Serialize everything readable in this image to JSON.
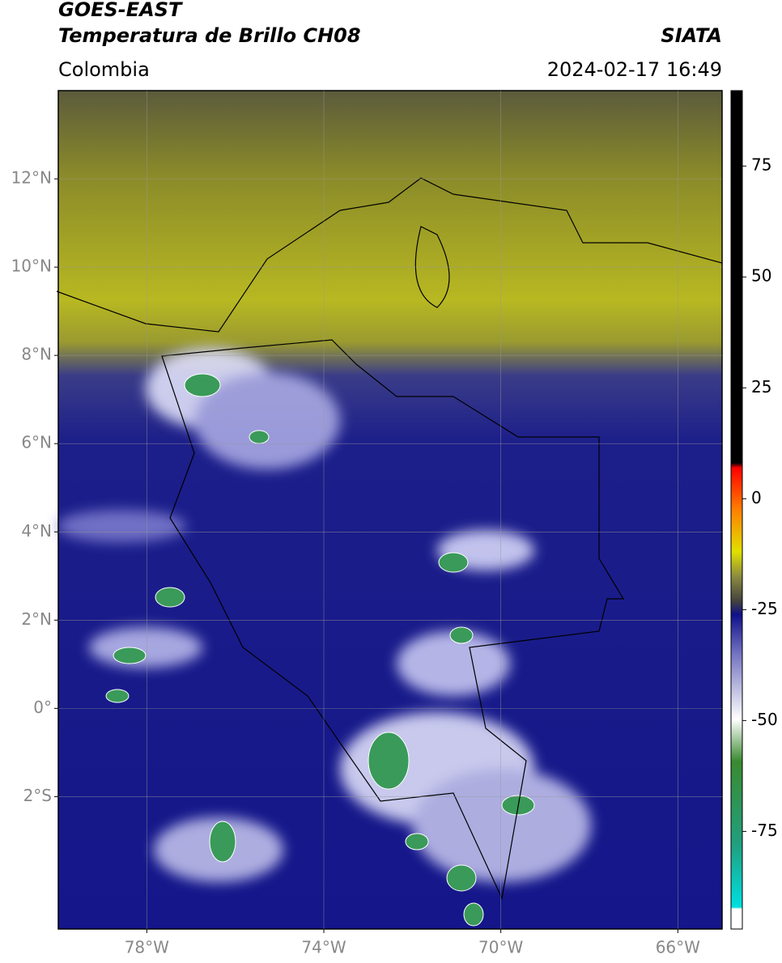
{
  "header": {
    "satellite": "GOES-EAST",
    "product": "Temperatura de Brillo CH08",
    "source": "SIATA",
    "region": "Colombia",
    "datetime": "2024-02-17 16:49"
  },
  "map": {
    "xlim": [
      -80,
      -65
    ],
    "ylim": [
      -5,
      14
    ],
    "yticks": [
      {
        "value": 12,
        "label": "12°N"
      },
      {
        "value": 10,
        "label": "10°N"
      },
      {
        "value": 8,
        "label": "8°N"
      },
      {
        "value": 6,
        "label": "6°N"
      },
      {
        "value": 4,
        "label": "4°N"
      },
      {
        "value": 2,
        "label": "2°N"
      },
      {
        "value": 0,
        "label": "0°"
      },
      {
        "value": -2,
        "label": "2°S"
      }
    ],
    "xticks": [
      {
        "value": -78,
        "label": "78°W"
      },
      {
        "value": -74,
        "label": "74°W"
      },
      {
        "value": -70,
        "label": "70°W"
      },
      {
        "value": -66,
        "label": "66°W"
      }
    ]
  },
  "colorbar": {
    "lim": [
      -97,
      92
    ],
    "ticks": [
      75,
      50,
      25,
      0,
      -25,
      -50,
      -75
    ]
  }
}
